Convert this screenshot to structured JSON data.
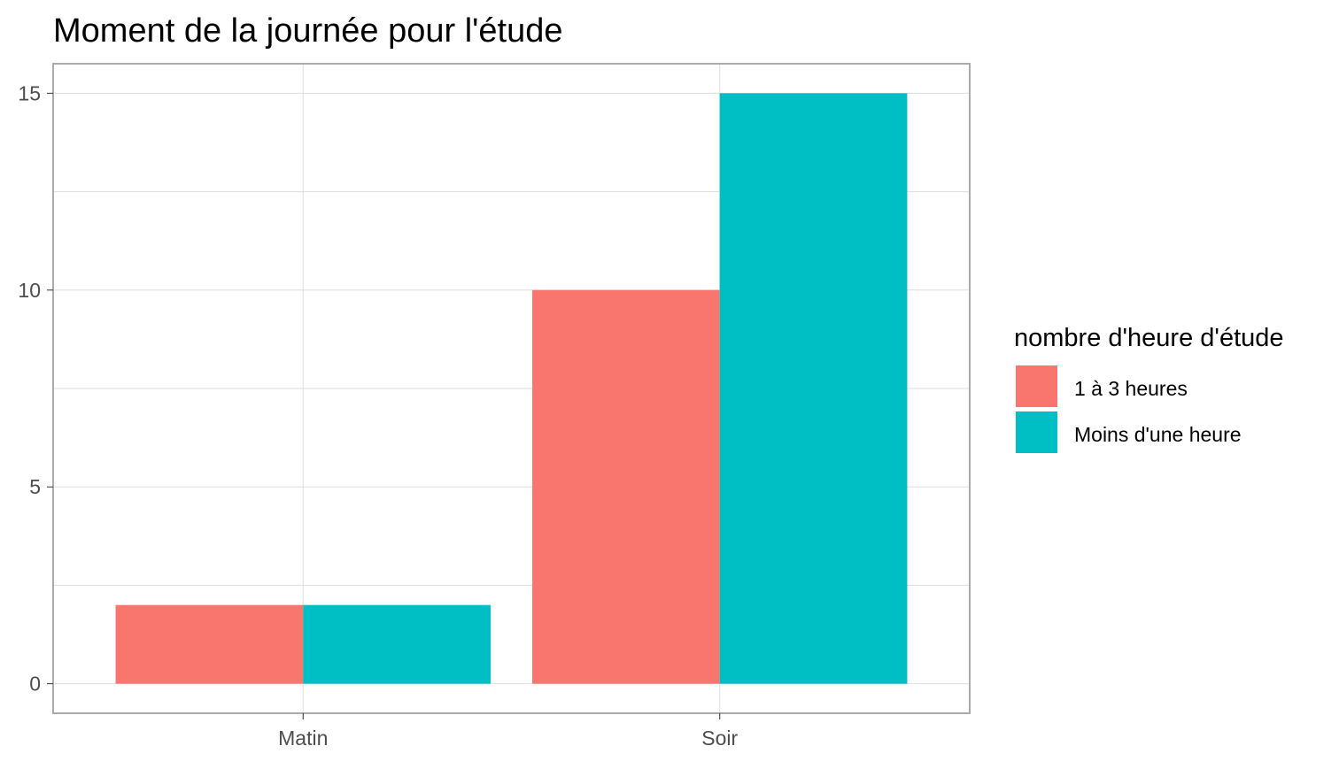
{
  "chart_data": {
    "type": "bar",
    "title": "Moment de la journée pour l'étude",
    "xlabel": "",
    "ylabel": "",
    "categories": [
      "Matin",
      "Soir"
    ],
    "series": [
      {
        "name": "1 à 3 heures",
        "values": [
          2,
          10
        ],
        "color": "#F8766D"
      },
      {
        "name": "Moins d'une heure",
        "values": [
          2,
          15
        ],
        "color": "#00BFC4"
      }
    ],
    "ylim": [
      -0.75,
      15.75
    ],
    "y_ticks": [
      0,
      5,
      10,
      15
    ],
    "y_tick_labels": [
      "0",
      "5",
      "10",
      "15"
    ],
    "y_minor_ticks": [
      2.5,
      7.5,
      12.5
    ],
    "grid": true,
    "legend": {
      "title": "nombre d'heure d'étude",
      "position": "right"
    },
    "colors": {
      "panel_border": "#ababab",
      "grid": "#dedede",
      "tick_label": "#4d4d4d",
      "text": "#000000"
    }
  }
}
